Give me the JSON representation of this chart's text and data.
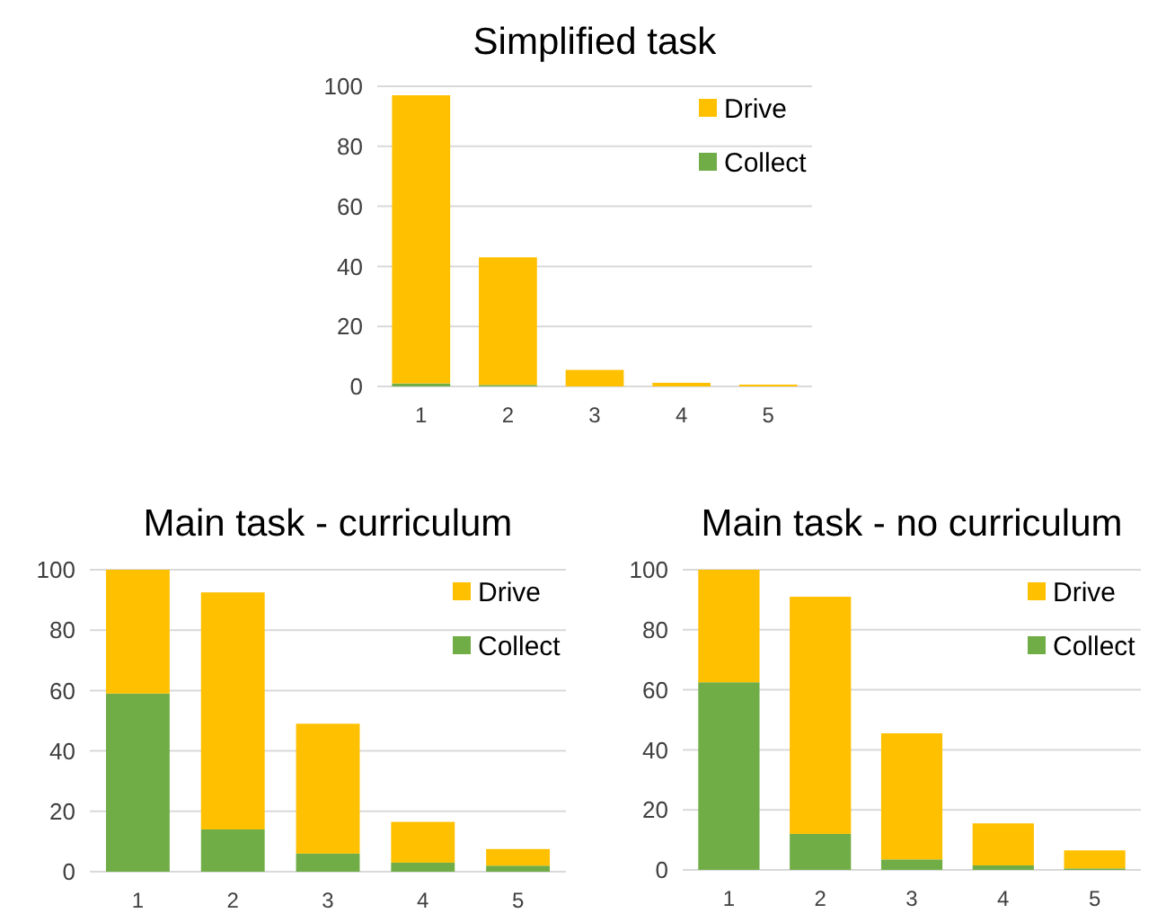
{
  "chart_data": [
    {
      "type": "bar",
      "title": "Simplified task",
      "categories": [
        "1",
        "2",
        "3",
        "4",
        "5"
      ],
      "stacked": true,
      "legend": "top right",
      "grid": "y",
      "ylim": [
        0,
        100
      ],
      "yticks": [
        0,
        20,
        40,
        60,
        80,
        100
      ],
      "series": [
        {
          "name": "Collect",
          "color": "#70ad47",
          "values": [
            1,
            0.5,
            0,
            0,
            0
          ]
        },
        {
          "name": "Drive",
          "color": "#ffc000",
          "values": [
            96,
            42.5,
            5.5,
            1.2,
            0.6
          ]
        }
      ]
    },
    {
      "type": "bar",
      "title": "Main task - curriculum",
      "categories": [
        "1",
        "2",
        "3",
        "4",
        "5"
      ],
      "stacked": true,
      "legend": "top right",
      "grid": "y",
      "ylim": [
        0,
        100
      ],
      "yticks": [
        0,
        20,
        40,
        60,
        80,
        100
      ],
      "series": [
        {
          "name": "Collect",
          "color": "#70ad47",
          "values": [
            59,
            14,
            6,
            3,
            2
          ]
        },
        {
          "name": "Drive",
          "color": "#ffc000",
          "values": [
            41,
            78.5,
            43,
            13.5,
            5.5
          ]
        }
      ]
    },
    {
      "type": "bar",
      "title": "Main task - no curriculum",
      "categories": [
        "1",
        "2",
        "3",
        "4",
        "5"
      ],
      "stacked": true,
      "legend": "top right",
      "grid": "y",
      "ylim": [
        0,
        100
      ],
      "yticks": [
        0,
        20,
        40,
        60,
        80,
        100
      ],
      "series": [
        {
          "name": "Collect",
          "color": "#70ad47",
          "values": [
            62.5,
            12,
            3.5,
            1.5,
            0.5
          ]
        },
        {
          "name": "Drive",
          "color": "#ffc000",
          "values": [
            37.5,
            79,
            42,
            14,
            6
          ]
        }
      ]
    }
  ]
}
